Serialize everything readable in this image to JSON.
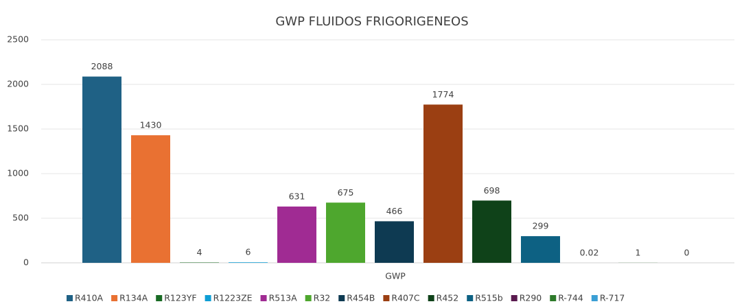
{
  "chart_data": {
    "type": "bar",
    "title": "GWP FLUIDOS FRIGORIGENEOS",
    "categories": [
      "GWP"
    ],
    "series": [
      {
        "name": "R410A",
        "color": "#1f6185",
        "values": [
          2088
        ]
      },
      {
        "name": "R134A",
        "color": "#e97132",
        "values": [
          1430
        ]
      },
      {
        "name": "R123YF",
        "color": "#196b24",
        "values": [
          4
        ]
      },
      {
        "name": "R1223ZE",
        "color": "#0f9ed5",
        "values": [
          6
        ]
      },
      {
        "name": "R513A",
        "color": "#a02b93",
        "values": [
          631
        ]
      },
      {
        "name": "R32",
        "color": "#4ea72e",
        "values": [
          675
        ]
      },
      {
        "name": "R454B",
        "color": "#0e3a52",
        "values": [
          466
        ]
      },
      {
        "name": "R407C",
        "color": "#9b3f12",
        "values": [
          1774
        ]
      },
      {
        "name": "R452",
        "color": "#0f4219",
        "values": [
          698
        ]
      },
      {
        "name": "R515b",
        "color": "#0d6183",
        "values": [
          299
        ]
      },
      {
        "name": "R290",
        "color": "#5a1a4f",
        "values": [
          0.02
        ]
      },
      {
        "name": "R-744",
        "color": "#2d7a2a",
        "values": [
          1
        ]
      },
      {
        "name": "R-717",
        "color": "#3b9fd5",
        "values": [
          0
        ]
      }
    ],
    "ylim": [
      0,
      2500
    ],
    "yticks": [
      0,
      500,
      1000,
      1500,
      2000,
      2500
    ],
    "grid": true,
    "legend": "bottom"
  }
}
